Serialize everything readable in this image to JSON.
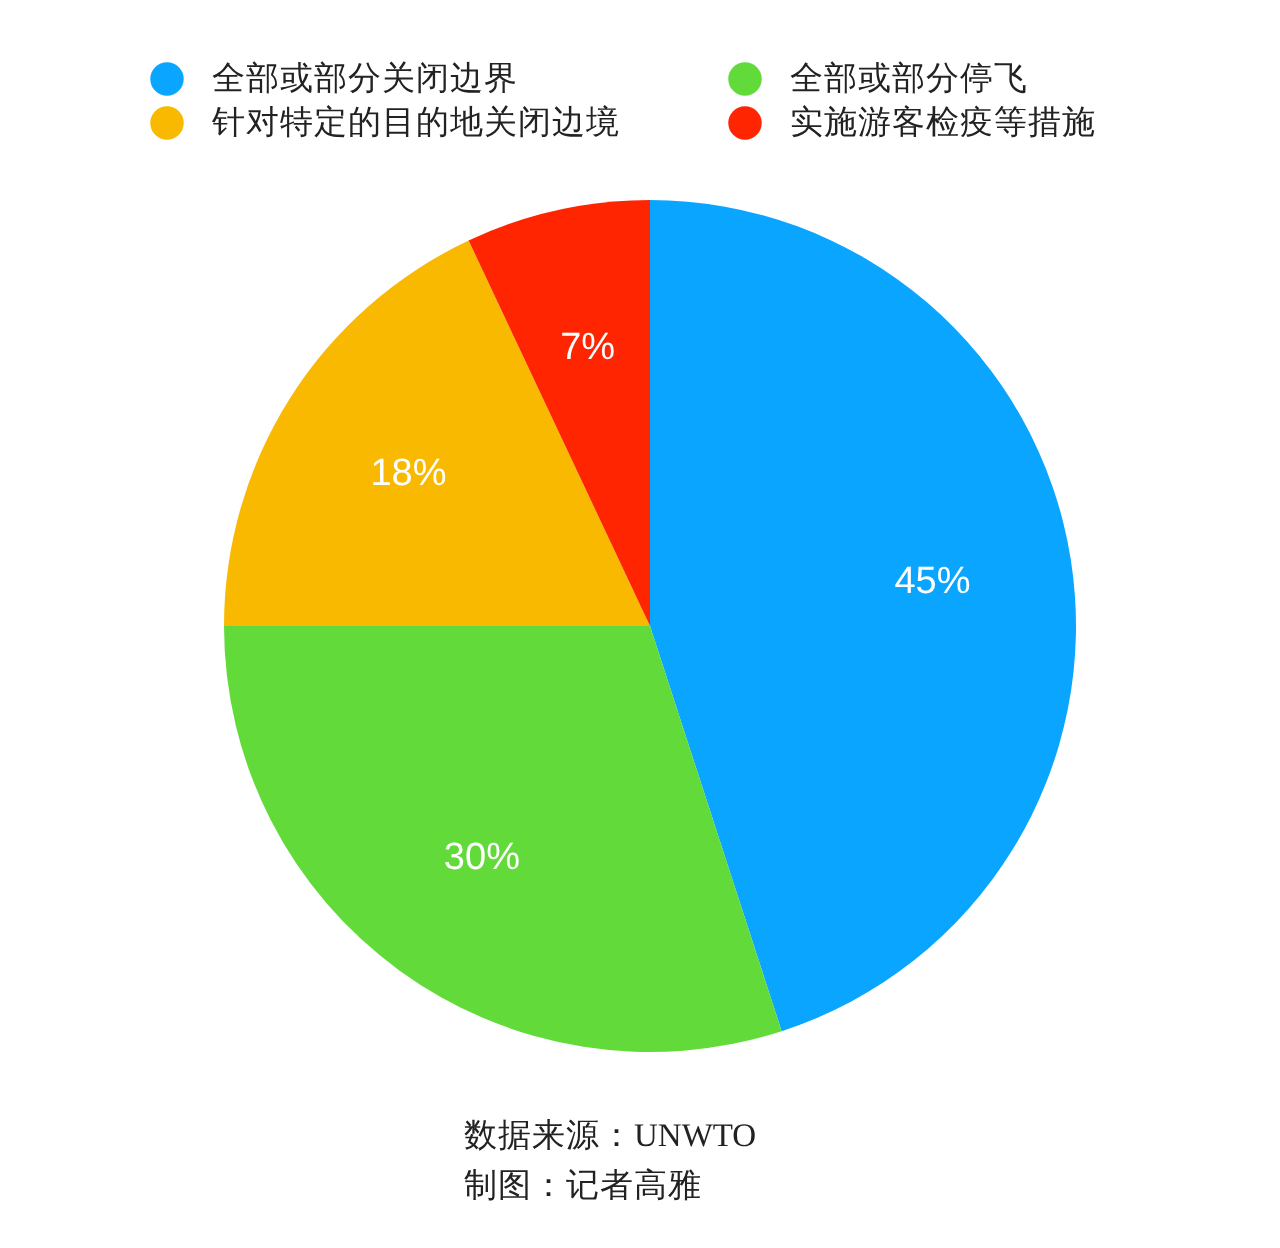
{
  "chart_data": {
    "type": "pie",
    "categories": [
      "全部或部分关闭边界",
      "全部或部分停飞",
      "针对特定的目的地关闭边境",
      "实施游客检疫等措施"
    ],
    "values": [
      45,
      30,
      18,
      7
    ],
    "colors": [
      "#0aa5ff",
      "#62db3a",
      "#f8b900",
      "#ff2500"
    ],
    "value_labels": [
      "45%",
      "30%",
      "18%",
      "7%"
    ],
    "legend": "top",
    "annotations": [
      "数据来源：UNWTO",
      "制图：记者高雅"
    ]
  }
}
